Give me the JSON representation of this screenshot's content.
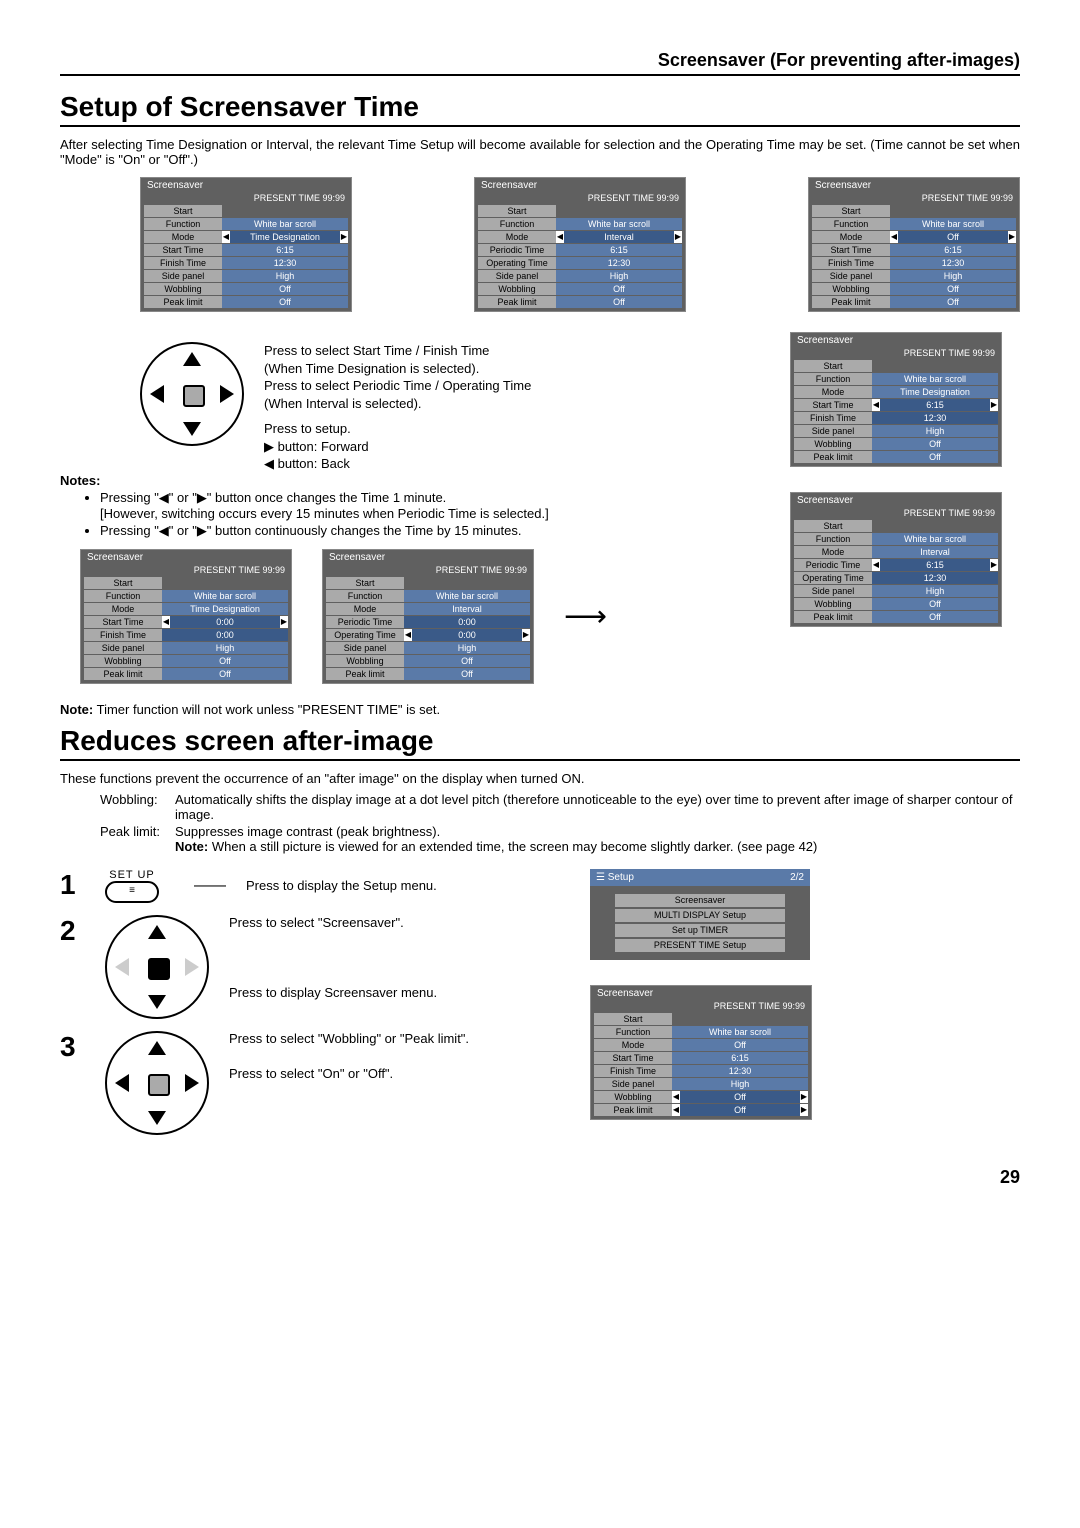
{
  "header": "Screensaver (For preventing after-images)",
  "section1": {
    "title": "Setup of Screensaver Time",
    "intro": "After selecting Time Designation or Interval, the relevant Time Setup will become available for selection and the Operating Time may be set. (Time cannot be set when \"Mode\" is \"On\" or \"Off\".)"
  },
  "menu_common": {
    "title": "Screensaver",
    "present": "PRESENT  TIME    99:99",
    "start": "Start",
    "function_label": "Function",
    "function_value": "White bar scroll",
    "mode_label": "Mode",
    "side_label": "Side panel",
    "side_value": "High",
    "wob_label": "Wobbling",
    "wob_value": "Off",
    "peak_label": "Peak limit",
    "peak_value": "Off"
  },
  "menuA": {
    "mode": "Time Designation",
    "r1l": "Start Time",
    "r1v": "6:15",
    "r2l": "Finish Time",
    "r2v": "12:30"
  },
  "menuB": {
    "mode": "Interval",
    "r1l": "Periodic Time",
    "r1v": "6:15",
    "r2l": "Operating Time",
    "r2v": "12:30"
  },
  "menuC": {
    "mode": "Off",
    "r1l": "Start Time",
    "r1v": "6:15",
    "r2l": "Finish Time",
    "r2v": "12:30"
  },
  "menuD": {
    "mode": "Time Designation",
    "r1l": "Start Time",
    "r1v": "6:15",
    "r2l": "Finish Time",
    "r2v": "12:30"
  },
  "menuE": {
    "mode": "Interval",
    "r1l": "Periodic Time",
    "r1v": "6:15",
    "r2l": "Operating Time",
    "r2v": "12:30"
  },
  "menuF": {
    "mode": "Time Designation",
    "r1l": "Start Time",
    "r1v": "0:00",
    "r2l": "Finish Time",
    "r2v": "0:00"
  },
  "menuG": {
    "mode": "Interval",
    "r1l": "Periodic Time",
    "r1v": "0:00",
    "r2l": "Operating Time",
    "r2v": "0:00"
  },
  "instr": {
    "l1": "Press to select Start Time / Finish Time",
    "l2": "(When Time Designation is selected).",
    "l3": "Press to select Periodic Time / Operating Time",
    "l4": "(When Interval is selected).",
    "l5": "Press to setup.",
    "l6": "▶ button: Forward",
    "l7": "◀ button: Back"
  },
  "notes_label": "Notes:",
  "notes": {
    "b1": "Pressing \"◀\" or \"▶\" button once changes the Time 1 minute.",
    "b1s": "[However, switching occurs every 15 minutes when Periodic Time is selected.]",
    "b2": "Pressing \"◀\" or \"▶\" button continuously changes the Time by 15 minutes."
  },
  "note_timer": "Timer function will not work unless \"PRESENT TIME\" is set.",
  "note_label": "Note:",
  "section2": {
    "title": "Reduces screen after-image",
    "intro": "These functions prevent the occurrence of an \"after image\" on the display when turned ON.",
    "wob_label": "Wobbling:",
    "wob_text": "Automatically shifts the display image at a dot level pitch (therefore unnoticeable to the eye) over time to prevent after image of sharper contour of image.",
    "peak_label": "Peak limit:",
    "peak_text": "Suppresses image contrast (peak brightness).",
    "note_label": "Note:",
    "note_text": "When a still picture is viewed for an extended time, the screen may become slightly darker. (see page 42)"
  },
  "steps": {
    "setup_label": "SET UP",
    "s1": "Press to display the Setup menu.",
    "s2a": "Press to select \"Screensaver\".",
    "s2b": "Press to display Screensaver menu.",
    "s3a": "Press to select \"Wobbling\" or \"Peak limit\".",
    "s3b": "Press to select \"On\" or \"Off\"."
  },
  "setup_menu": {
    "title": "Setup",
    "page": "2/2",
    "i1": "Screensaver",
    "i2": "MULTI DISPLAY Setup",
    "i3": "Set up TIMER",
    "i4": "PRESENT TIME Setup"
  },
  "menuH": {
    "mode": "Off",
    "r1l": "Start Time",
    "r1v": "6:15",
    "r2l": "Finish Time",
    "r2v": "12:30"
  },
  "page_number": "29"
}
